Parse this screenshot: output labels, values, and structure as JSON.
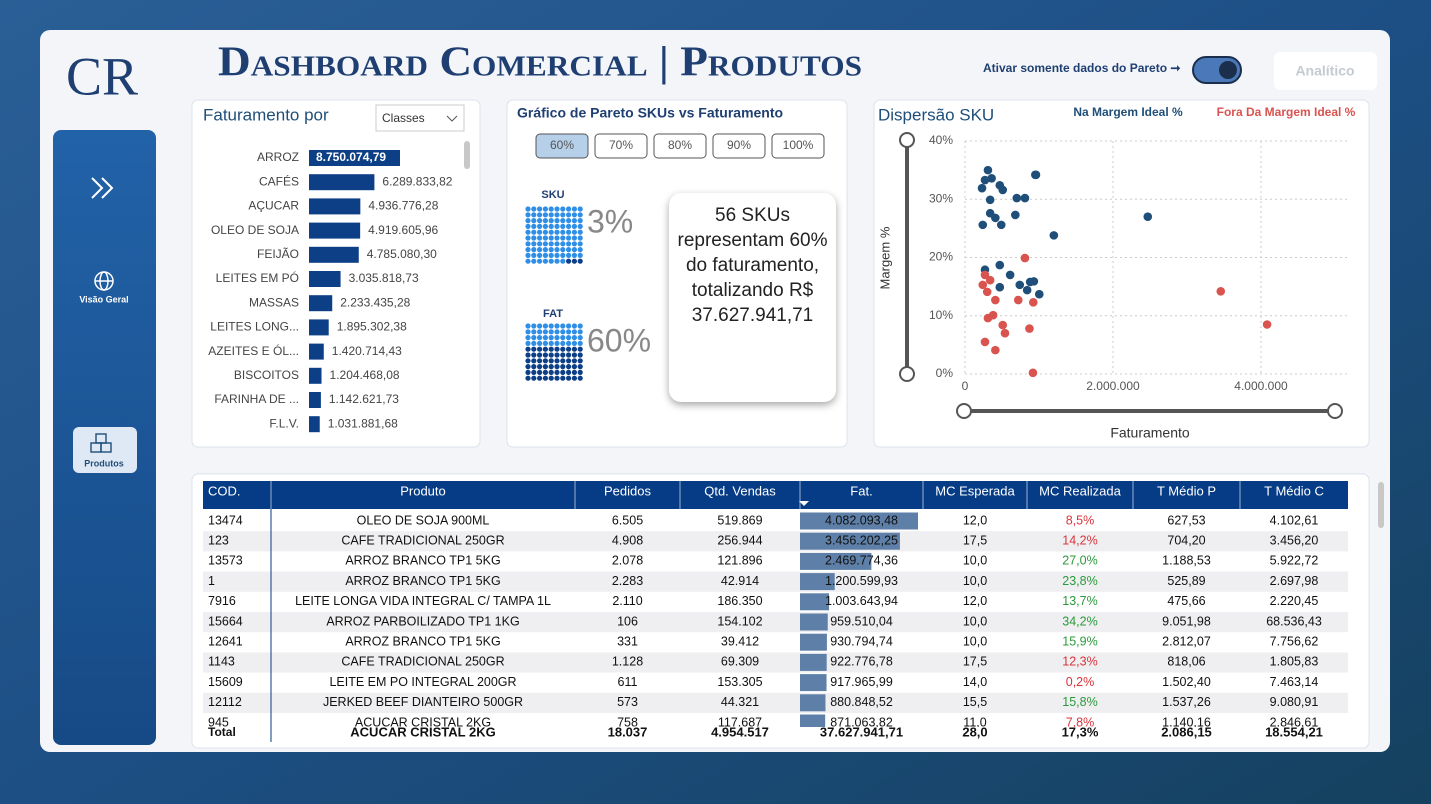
{
  "logo": "CR",
  "title": "Dashboard Comercial | Produtos",
  "toggle": {
    "label": "Ativar somente dados do Pareto ➞",
    "on": true
  },
  "button": "Analítico",
  "nav": [
    "Visão Geral",
    "Produtos"
  ],
  "chart_data": [
    {
      "type": "bar",
      "title": "Faturamento por",
      "dropdown": "Classes",
      "color": "#0d3f87",
      "selected": 0,
      "categories": [
        "ARROZ",
        "CAFÉS",
        "AÇUCAR",
        "OLEO DE SOJA",
        "FEIJÃO",
        "LEITES EM PÓ",
        "MASSAS",
        "LEITES LONG...",
        "AZEITES E ÓL...",
        "BISCOITOS",
        "FARINHA DE ...",
        "F.L.V."
      ],
      "values": [
        8750074.79,
        6289833.82,
        4936776.28,
        4919605.96,
        4785080.3,
        3035818.73,
        2233435.28,
        1895302.38,
        1420714.43,
        1204468.08,
        1142621.73,
        1031881.68
      ],
      "value_labels": [
        "8.750.074,79",
        "6.289.833,82",
        "4.936.776,28",
        "4.919.605,96",
        "4.785.080,30",
        "3.035.818,73",
        "2.233.435,28",
        "1.895.302,38",
        "1.420.714,43",
        "1.204.468,08",
        "1.142.621,73",
        "1.031.881,68"
      ]
    },
    {
      "type": "scatter",
      "title": "Dispersão SKU",
      "x_label": "Faturamento",
      "y_label": "Margem %",
      "grid": true,
      "xlim": [
        0,
        5000000
      ],
      "xticks": [
        0,
        {
          "value": 2000000,
          "label": "2.000.000"
        },
        {
          "value": 4000000,
          "label": "4.000.000"
        }
      ],
      "ylim": [
        0,
        40
      ],
      "yticks": [
        {
          "value": 0,
          "label": "0%"
        },
        {
          "value": 10,
          "label": "10%"
        },
        {
          "value": 20,
          "label": "20%"
        },
        {
          "value": 30,
          "label": "30%"
        },
        {
          "value": 40,
          "label": "40%"
        }
      ],
      "series": [
        {
          "name": "Na Margem Ideal %",
          "color": "#1f4e79",
          "x": [
            310000,
            270000,
            360000,
            470000,
            510000,
            230000,
            340000,
            700000,
            810000,
            950000,
            2469774,
            340000,
            410000,
            240000,
            490000,
            680000,
            1200599,
            470000,
            610000,
            270000,
            740000,
            959510,
            840000,
            1003644,
            470000,
            930795,
            880849
          ],
          "values": [
            35,
            33.3,
            33.6,
            32.4,
            31.6,
            31.9,
            29.9,
            30.2,
            30.2,
            34.2,
            27.0,
            27.6,
            26.8,
            25.6,
            25.6,
            27.3,
            23.8,
            18.7,
            17.0,
            17.9,
            15.3,
            34.2,
            14.4,
            13.7,
            14.9,
            15.9,
            15.8
          ]
        },
        {
          "name": "Fora Da Margem Ideal %",
          "color": "#d9534f",
          "x": [
            270000,
            340000,
            240000,
            300000,
            410000,
            810000,
            720000,
            3456202,
            4082093,
            310000,
            380000,
            270000,
            410000,
            540000,
            510000,
            922777,
            871064,
            917966
          ],
          "values": [
            17.0,
            16.1,
            15.3,
            14.1,
            12.7,
            19.9,
            12.7,
            14.2,
            8.5,
            9.6,
            10.1,
            5.5,
            4.1,
            7.0,
            8.4,
            12.3,
            7.8,
            0.2
          ]
        }
      ]
    }
  ],
  "pareto": {
    "title": "Gráfico de Pareto SKUs vs Faturamento",
    "options": [
      "60%",
      "70%",
      "80%",
      "90%",
      "100%"
    ],
    "selected": 0,
    "sku": {
      "label": "SKU",
      "value": 3,
      "value_label": "3%"
    },
    "fat": {
      "label": "FAT",
      "value": 60,
      "value_label": "60%"
    },
    "summary": "56 SKUs representam 60% do faturamento, totalizando R$ 37.627.941,71"
  },
  "table": {
    "columns": [
      "COD.",
      "Produto",
      "Pedidos",
      "Qtd. Vendas",
      "Fat.",
      "MC Esperada",
      "MC Realizada",
      "T Médio P",
      "T Médio C"
    ],
    "rows": [
      [
        "13474",
        "OLEO DE SOJA 900ML",
        "6.505",
        "519.869",
        "4.082.093,48",
        "12,0",
        "8,5%",
        "627,53",
        "4.102,61"
      ],
      [
        "123",
        "CAFE TRADICIONAL 250GR",
        "4.908",
        "256.944",
        "3.456.202,25",
        "17,5",
        "14,2%",
        "704,20",
        "3.456,20"
      ],
      [
        "13573",
        "ARROZ BRANCO TP1 5KG",
        "2.078",
        "121.896",
        "2.469.774,36",
        "10,0",
        "27,0%",
        "1.188,53",
        "5.922,72"
      ],
      [
        "1",
        "ARROZ BRANCO TP1 5KG",
        "2.283",
        "42.914",
        "1.200.599,93",
        "10,0",
        "23,8%",
        "525,89",
        "2.697,98"
      ],
      [
        "7916",
        "LEITE LONGA VIDA INTEGRAL C/ TAMPA 1L",
        "2.110",
        "186.350",
        "1.003.643,94",
        "12,0",
        "13,7%",
        "475,66",
        "2.220,45"
      ],
      [
        "15664",
        "ARROZ PARBOILIZADO TP1 1KG",
        "106",
        "154.102",
        "959.510,04",
        "10,0",
        "34,2%",
        "9.051,98",
        "68.536,43"
      ],
      [
        "12641",
        "ARROZ BRANCO TP1 5KG",
        "331",
        "39.412",
        "930.794,74",
        "10,0",
        "15,9%",
        "2.812,07",
        "7.756,62"
      ],
      [
        "1143",
        "CAFE TRADICIONAL 250GR",
        "1.128",
        "69.309",
        "922.776,78",
        "17,5",
        "12,3%",
        "818,06",
        "1.805,83"
      ],
      [
        "15609",
        "LEITE EM PO INTEGRAL 200GR",
        "611",
        "153.305",
        "917.965,99",
        "14,0",
        "0,2%",
        "1.502,40",
        "7.463,14"
      ],
      [
        "12112",
        "JERKED BEEF DIANTEIRO 500GR",
        "573",
        "44.321",
        "880.848,52",
        "15,5",
        "15,8%",
        "1.537,26",
        "9.080,91"
      ],
      [
        "945",
        "ACUCAR CRISTAL 2KG",
        "758",
        "117.687",
        "871.063,82",
        "11,0",
        "7,8%",
        "1.140,16",
        "2.846,61"
      ]
    ],
    "total": [
      "Total",
      "ACUCAR CRISTAL 2KG",
      "18.037",
      "4.954.517",
      "37.627.941,71",
      "28,0",
      "17,3%",
      "2.086,15",
      "18.554,21"
    ]
  }
}
